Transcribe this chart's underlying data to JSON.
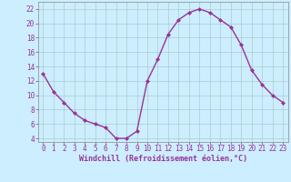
{
  "x": [
    0,
    1,
    2,
    3,
    4,
    5,
    6,
    7,
    8,
    9,
    10,
    11,
    12,
    13,
    14,
    15,
    16,
    17,
    18,
    19,
    20,
    21,
    22,
    23
  ],
  "y": [
    13,
    10.5,
    9,
    7.5,
    6.5,
    6,
    5.5,
    4,
    4,
    5,
    12,
    15,
    18.5,
    20.5,
    21.5,
    22,
    21.5,
    20.5,
    19.5,
    17,
    13.5,
    11.5,
    10,
    9
  ],
  "line_color": "#993399",
  "marker": "D",
  "marker_size": 2.0,
  "bg_color": "#cceeff",
  "grid_color": "#aacccc",
  "xlabel": "Windchill (Refroidissement éolien,°C)",
  "xlabel_color": "#993399",
  "tick_color": "#993399",
  "label_color": "#993399",
  "ylim": [
    3.5,
    23
  ],
  "xlim": [
    -0.5,
    23.5
  ],
  "yticks": [
    4,
    6,
    8,
    10,
    12,
    14,
    16,
    18,
    20,
    22
  ],
  "xticks": [
    0,
    1,
    2,
    3,
    4,
    5,
    6,
    7,
    8,
    9,
    10,
    11,
    12,
    13,
    14,
    15,
    16,
    17,
    18,
    19,
    20,
    21,
    22,
    23
  ],
  "tick_fontsize": 5.5,
  "xlabel_fontsize": 6.0,
  "linewidth": 1.0
}
